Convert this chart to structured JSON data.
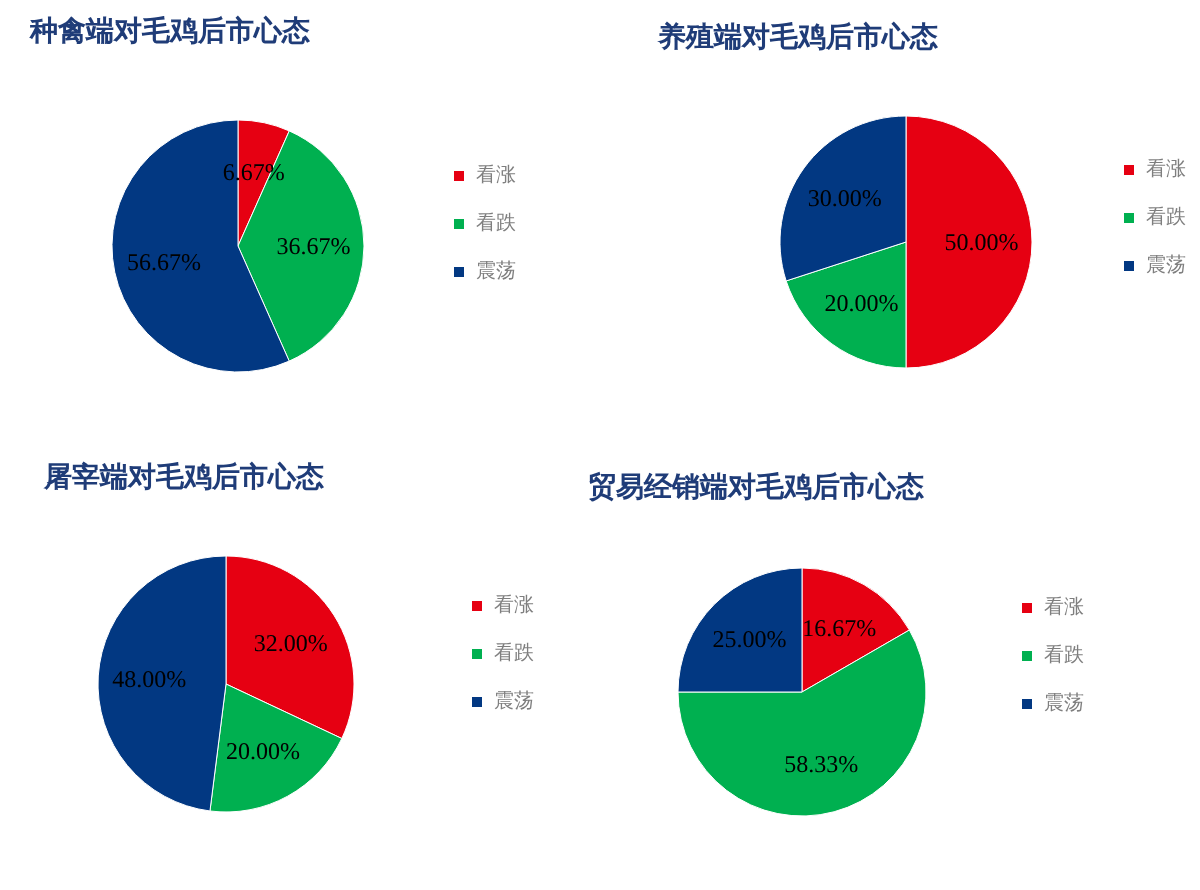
{
  "chart_data": [
    {
      "type": "pie",
      "title": "种禽端对毛鸡后市心态",
      "categories": [
        "看涨",
        "看跌",
        "震荡"
      ],
      "values": [
        6.67,
        36.67,
        56.67
      ],
      "value_labels": [
        "6.67%",
        "36.67%",
        "56.67%"
      ],
      "colors": [
        "#e60012",
        "#00b050",
        "#023882"
      ],
      "legend": "right"
    },
    {
      "type": "pie",
      "title": "养殖端对毛鸡后市心态",
      "categories": [
        "看涨",
        "看跌",
        "震荡"
      ],
      "values": [
        50,
        20,
        30
      ],
      "value_labels": [
        "50.00%",
        "20.00%",
        "30.00%"
      ],
      "colors": [
        "#e60012",
        "#00b050",
        "#023882"
      ],
      "legend": "right"
    },
    {
      "type": "pie",
      "title": "屠宰端对毛鸡后市心态",
      "categories": [
        "看涨",
        "看跌",
        "震荡"
      ],
      "values": [
        32,
        20,
        48
      ],
      "value_labels": [
        "32.00%",
        "20.00%",
        "48.00%"
      ],
      "colors": [
        "#e60012",
        "#00b050",
        "#023882"
      ],
      "legend": "right"
    },
    {
      "type": "pie",
      "title": "贸易经销端对毛鸡后市心态",
      "categories": [
        "看涨",
        "看跌",
        "震荡"
      ],
      "values": [
        16.67,
        58.33,
        25
      ],
      "value_labels": [
        "16.67%",
        "58.33%",
        "25.00%"
      ],
      "colors": [
        "#e60012",
        "#00b050",
        "#023882"
      ],
      "legend": "right"
    }
  ]
}
